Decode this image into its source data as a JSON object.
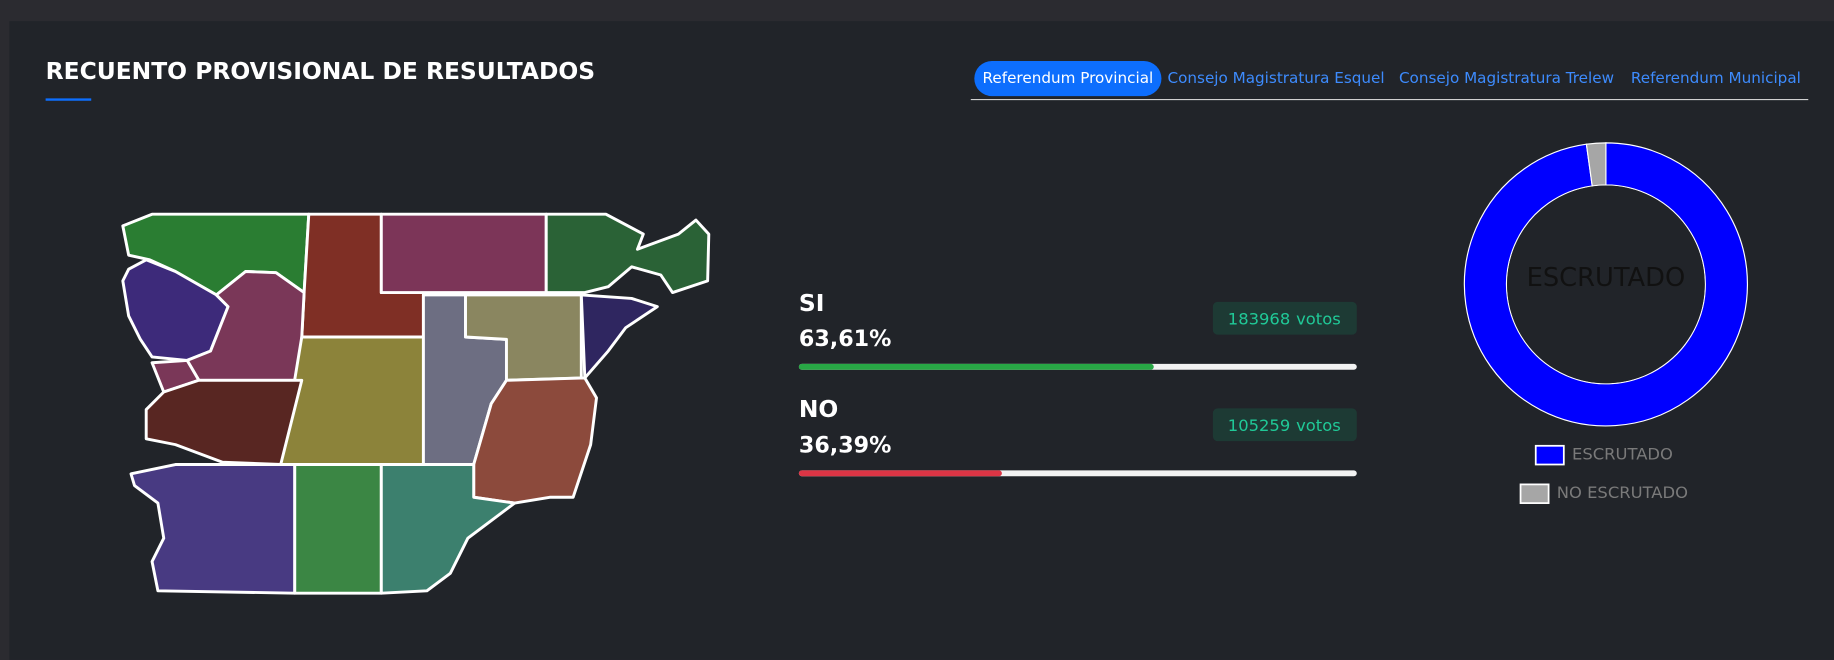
{
  "header": {
    "title": "RECUENTO PROVISIONAL DE RESULTADOS",
    "tabs": [
      "Referendum Provincial",
      "Consejo Magistratura Esquel",
      "Consejo Magistratura Trelew",
      "Referendum Municipal"
    ],
    "active_tab": 0
  },
  "results": [
    {
      "label": "SI",
      "percent": {
        "value": 63.61,
        "label": "63,61%"
      },
      "votes": 183968,
      "votes_unit": "votos",
      "color": "#28a745"
    },
    {
      "label": "NO",
      "percent": {
        "value": 36.39,
        "label": "36,39%"
      },
      "votes": 105259,
      "votes_unit": "votos",
      "color": "#dc3545"
    }
  ],
  "chart_data": {
    "type": "pie",
    "center_label": "ESCRUTADO",
    "categories": [
      "ESCRUTADO",
      "NO ESCRUTADO"
    ],
    "values": [
      97.8,
      2.2
    ],
    "colors": [
      "#0000ff",
      "#a6a6a6"
    ]
  }
}
